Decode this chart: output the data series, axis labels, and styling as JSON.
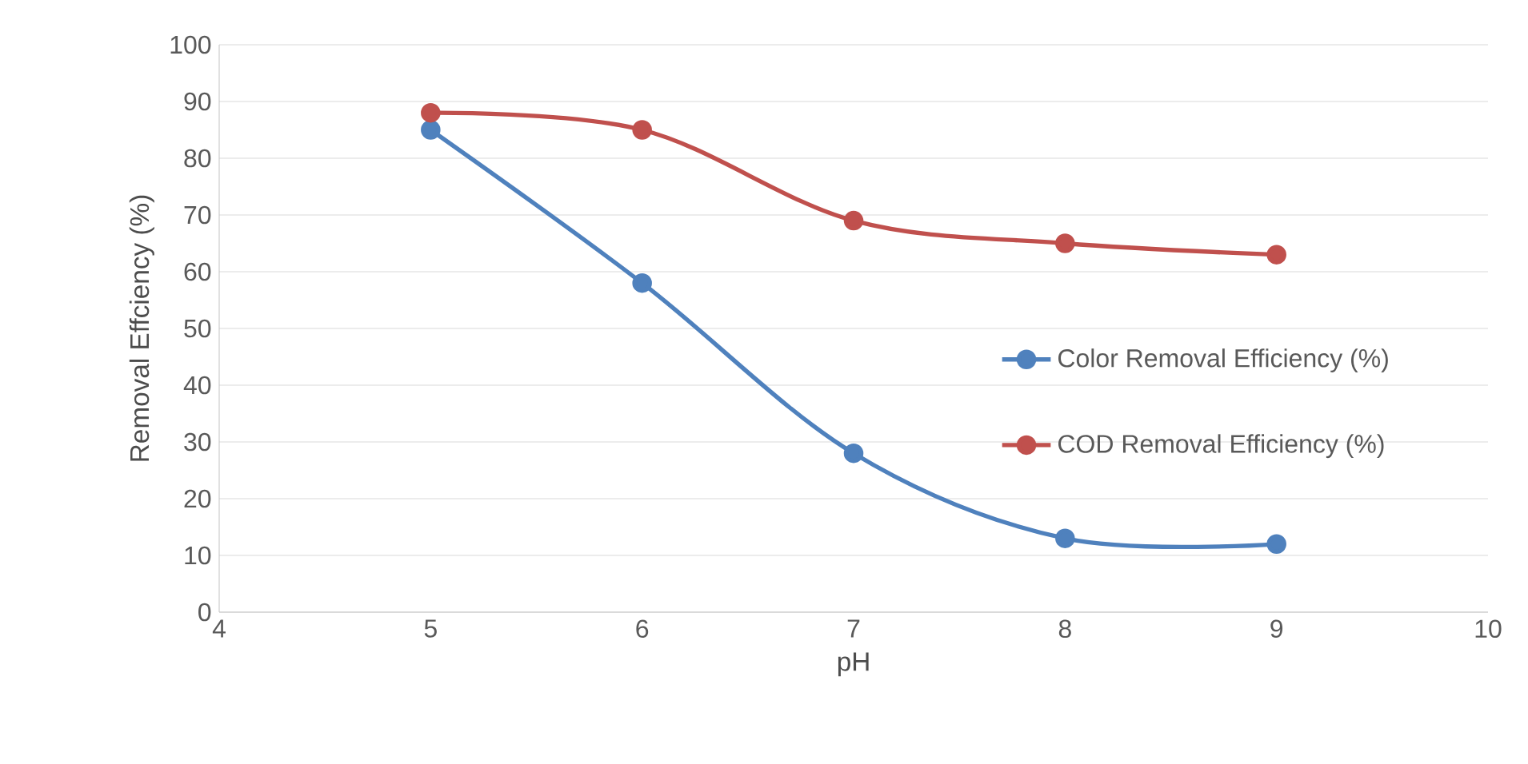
{
  "chart_data": {
    "type": "line",
    "xlabel": "pH",
    "ylabel": "Removal Effciency (%)",
    "x": [
      5,
      6,
      7,
      8,
      9
    ],
    "series": [
      {
        "name": "Color Removal Efficiency (%)",
        "color": "#4f81bd",
        "values": [
          85,
          58,
          28,
          13,
          12
        ]
      },
      {
        "name": "COD  Removal Efficiency (%)",
        "color": "#c0504d",
        "values": [
          88,
          85,
          69,
          65,
          63
        ]
      }
    ],
    "xlim": [
      4,
      10
    ],
    "xticks": [
      4,
      5,
      6,
      7,
      8,
      9,
      10
    ],
    "ylim": [
      0,
      100
    ],
    "yticks": [
      0,
      10,
      20,
      30,
      40,
      50,
      60,
      70,
      80,
      90,
      100
    ],
    "grid": "y",
    "legend": "right",
    "marker": "circle",
    "line_style": "solid"
  }
}
